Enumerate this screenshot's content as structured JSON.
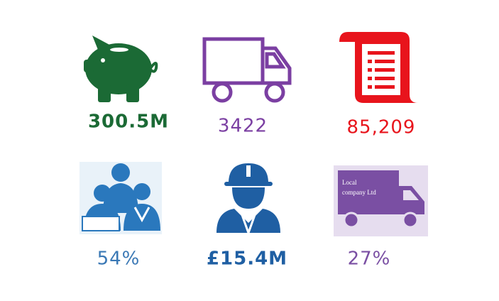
{
  "tiles": [
    {
      "label": "300.5M"
    },
    {
      "label": "3422"
    },
    {
      "label": "85,209"
    },
    {
      "label": "54%"
    },
    {
      "label": "£15.4M"
    },
    {
      "label": "27%"
    }
  ],
  "van_sign": [
    "Local",
    "company Ltd"
  ]
}
